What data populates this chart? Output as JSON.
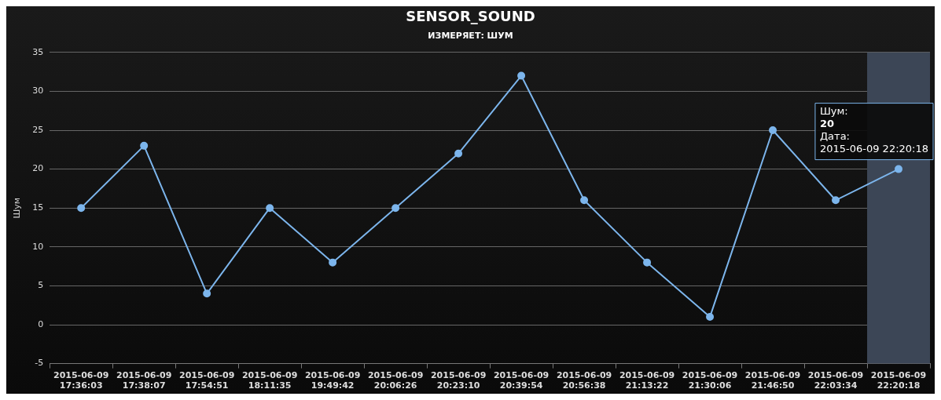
{
  "chart_data": {
    "type": "line",
    "title": "SENSOR_SOUND",
    "subtitle": "ИЗМЕРЯЕТ: ШУМ",
    "ylabel": "Шум",
    "categories": [
      "2015-06-09 17:36:03",
      "2015-06-09 17:38:07",
      "2015-06-09 17:54:51",
      "2015-06-09 18:11:35",
      "2015-06-09 19:49:42",
      "2015-06-09 20:06:26",
      "2015-06-09 20:23:10",
      "2015-06-09 20:39:54",
      "2015-06-09 20:56:38",
      "2015-06-09 21:13:22",
      "2015-06-09 21:30:06",
      "2015-06-09 21:46:50",
      "2015-06-09 22:03:34",
      "2015-06-09 22:20:18"
    ],
    "series": [
      {
        "color": "#7cb5ec",
        "values": [
          15,
          23,
          4,
          15,
          8,
          15,
          22,
          32,
          16,
          8,
          1,
          25,
          16,
          20
        ]
      }
    ],
    "ylim": [
      -5,
      35
    ],
    "yticks": [
      -5,
      0,
      5,
      10,
      15,
      20,
      25,
      30,
      35
    ],
    "grid": "y",
    "legend": false,
    "marker": "circle",
    "line_style": "solid",
    "bands": [
      {
        "axis": "x",
        "from": "2015-06-09 22:20:18",
        "to": "2015-06-09 22:20:18",
        "color": "#3c4656"
      }
    ],
    "annotations": [
      {
        "text": "Шум:\n20\nДата:\n2015-06-09 22:20:18",
        "x": "2015-06-09 22:20:18",
        "y": 20
      }
    ]
  }
}
